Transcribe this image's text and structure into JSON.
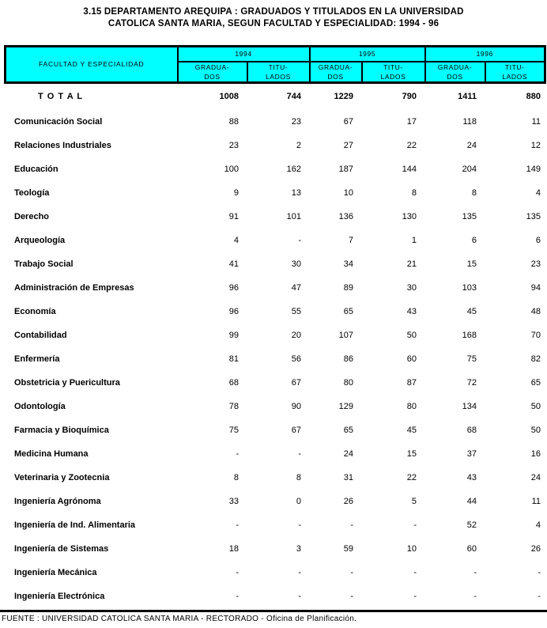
{
  "title": {
    "line1": "3.15  DEPARTAMENTO AREQUIPA : GRADUADOS Y TITULADOS EN LA UNIVERSIDAD",
    "line2": "CATOLICA SANTA MARIA, SEGUN FACULTAD Y ESPECIALIDAD: 1994 - 96"
  },
  "table": {
    "header": {
      "facultad_label": "FACULTAD Y ESPECIALIDAD",
      "years": [
        "1994",
        "1995",
        "1996"
      ],
      "subcolumns": [
        "GRADUA-\nDOS",
        "TITU-\nLADOS"
      ]
    },
    "total_row": {
      "label": "T O T A L",
      "values": [
        "1008",
        "744",
        "1229",
        "790",
        "1411",
        "880"
      ]
    },
    "rows": [
      {
        "label": "Comunicación Social",
        "values": [
          "88",
          "23",
          "67",
          "17",
          "118",
          "11"
        ]
      },
      {
        "label": "Relaciones Industriales",
        "values": [
          "23",
          "2",
          "27",
          "22",
          "24",
          "12"
        ]
      },
      {
        "label": "Educación",
        "values": [
          "100",
          "162",
          "187",
          "144",
          "204",
          "149"
        ]
      },
      {
        "label": "Teología",
        "values": [
          "9",
          "13",
          "10",
          "8",
          "8",
          "4"
        ]
      },
      {
        "label": "Derecho",
        "values": [
          "91",
          "101",
          "136",
          "130",
          "135",
          "135"
        ]
      },
      {
        "label": "Arqueología",
        "values": [
          "4",
          "-",
          "7",
          "1",
          "6",
          "6"
        ]
      },
      {
        "label": "Trabajo Social",
        "values": [
          "41",
          "30",
          "34",
          "21",
          "15",
          "23"
        ]
      },
      {
        "label": "Administración de Empresas",
        "values": [
          "96",
          "47",
          "89",
          "30",
          "103",
          "94"
        ]
      },
      {
        "label": "Economía",
        "values": [
          "96",
          "55",
          "65",
          "43",
          "45",
          "48"
        ]
      },
      {
        "label": "Contabilidad",
        "values": [
          "99",
          "20",
          "107",
          "50",
          "168",
          "70"
        ]
      },
      {
        "label": "Enfermería",
        "values": [
          "81",
          "56",
          "86",
          "60",
          "75",
          "82"
        ]
      },
      {
        "label": "Obstetricia y Puericultura",
        "values": [
          "68",
          "67",
          "80",
          "87",
          "72",
          "65"
        ]
      },
      {
        "label": "Odontología",
        "values": [
          "78",
          "90",
          "129",
          "80",
          "134",
          "50"
        ]
      },
      {
        "label": "Farmacia y Bioquímica",
        "values": [
          "75",
          "67",
          "65",
          "45",
          "68",
          "50"
        ]
      },
      {
        "label": "Medicina Humana",
        "values": [
          "-",
          "-",
          "24",
          "15",
          "37",
          "16"
        ]
      },
      {
        "label": "Veterinaria y Zootecnia",
        "values": [
          "8",
          "8",
          "31",
          "22",
          "43",
          "24"
        ]
      },
      {
        "label": "Ingeniería  Agrónoma",
        "values": [
          "33",
          "0",
          "26",
          "5",
          "44",
          "11"
        ]
      },
      {
        "label": "Ingeniería  de Ind. Alimentaria",
        "values": [
          "-",
          "-",
          "-",
          "-",
          "52",
          "4"
        ]
      },
      {
        "label": "Ingeniería de Sistemas",
        "values": [
          "18",
          "3",
          "59",
          "10",
          "60",
          "26"
        ]
      },
      {
        "label": "Ingeniería Mecánica",
        "values": [
          "-",
          "-",
          "-",
          "-",
          "-",
          "-"
        ]
      },
      {
        "label": "Ingeniería Electrónica",
        "values": [
          "-",
          "-",
          "-",
          "-",
          "-",
          "-"
        ]
      }
    ]
  },
  "footer": {
    "source": "FUENTE : UNIVERSIDAD CATOLICA SANTA MARIA - RECTORADO - Oficina de Planificación."
  },
  "colors": {
    "header_bg": "#00FFFF",
    "border": "#000000",
    "text": "#000000",
    "background": "#FFFFFF"
  }
}
